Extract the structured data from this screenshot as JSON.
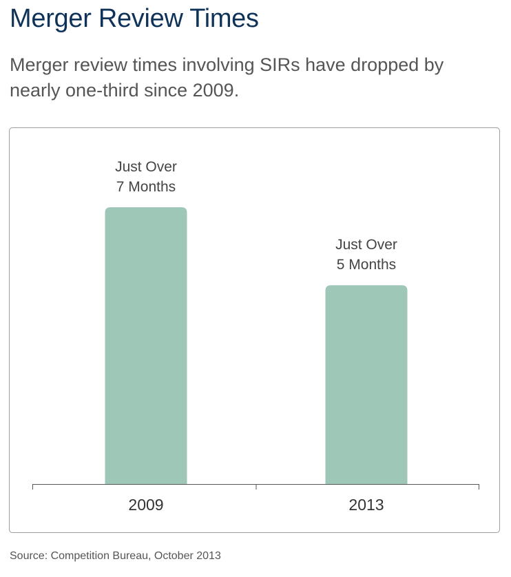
{
  "header": {
    "title": "Merger Review Times",
    "subtitle": "Merger review times involving SIRs have dropped by nearly one-third since 2009."
  },
  "chart_data": {
    "type": "bar",
    "title": "",
    "xlabel": "",
    "ylabel": "",
    "categories": [
      "2009",
      "2013"
    ],
    "values": [
      7.1,
      5.1
    ],
    "units": "months",
    "data_labels": [
      [
        "Just Over",
        "7 Months"
      ],
      [
        "Just Over",
        "5 Months"
      ]
    ],
    "ylim": [
      0,
      7.1
    ],
    "grid": false,
    "bar_color": "#9fc7b8",
    "axis_color": "#555555"
  },
  "footer": {
    "source": "Source: Competition Bureau, October 2013"
  }
}
